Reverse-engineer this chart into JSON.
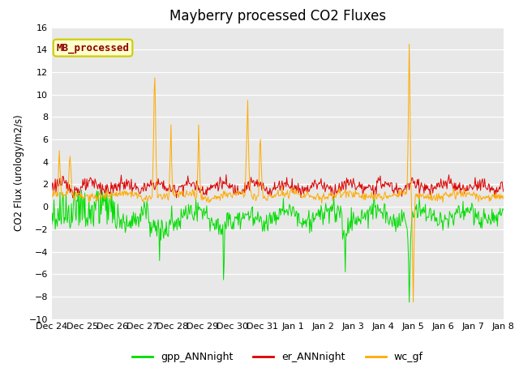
{
  "title": "Mayberry processed CO2 Fluxes",
  "ylabel": "CO2 Flux (urology/m2/s)",
  "ylim": [
    -10,
    16
  ],
  "yticks": [
    -10,
    -8,
    -6,
    -4,
    -2,
    0,
    2,
    4,
    6,
    8,
    10,
    12,
    14,
    16
  ],
  "fig_bg_color": "#ffffff",
  "plot_bg_color": "#e8e8e8",
  "gpp_color": "#00dd00",
  "er_color": "#dd0000",
  "wc_color": "#ffaa00",
  "legend_label_gpp": "gpp_ANNnight",
  "legend_label_er": "er_ANNnight",
  "legend_label_wc": "wc_gf",
  "annotation_text": "MB_processed",
  "annotation_color": "#8b0000",
  "annotation_bg": "#ffffcc",
  "annotation_border": "#cccc00",
  "n_points": 672,
  "title_fontsize": 12,
  "tick_labelsize": 8,
  "legend_fontsize": 9,
  "tick_labels": [
    "Dec 24",
    "Dec 25",
    "Dec 26",
    "Dec 27",
    "Dec 28",
    "Dec 29",
    "Dec 30",
    "Dec 31",
    "Jan 1",
    "Jan 2",
    "Jan 3",
    "Jan 4",
    "Jan 5",
    "Jan 6",
    "Jan 7",
    "Jan 8"
  ],
  "linewidth": 0.7
}
